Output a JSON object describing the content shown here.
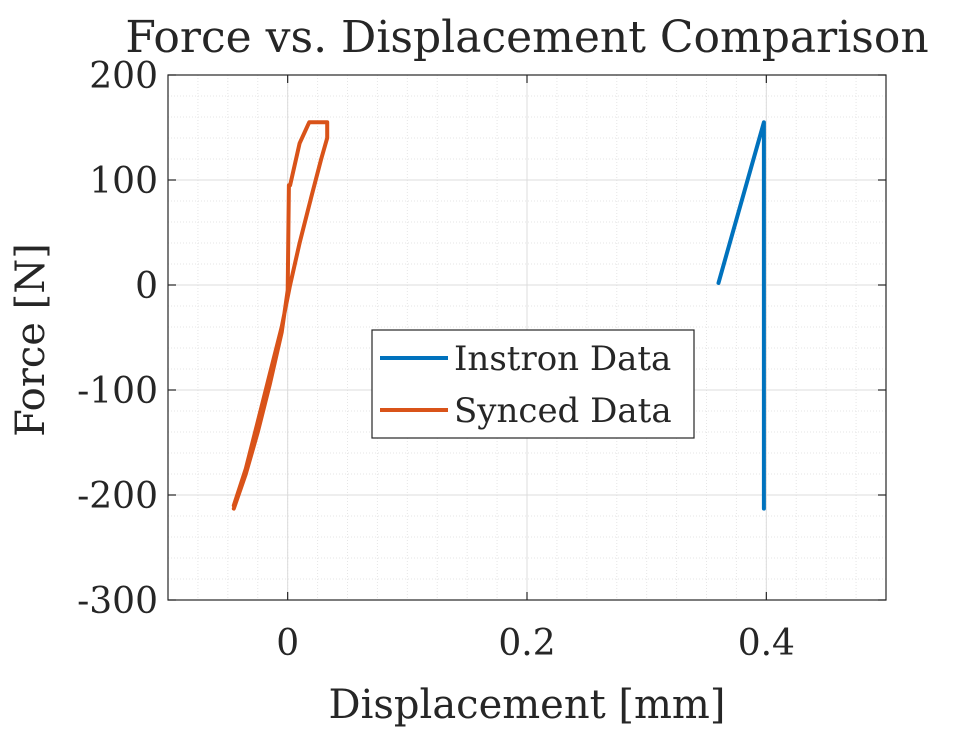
{
  "chart_data": {
    "type": "line",
    "title": "Force vs. Displacement Comparison",
    "xlabel": "Displacement [mm]",
    "ylabel": "Force [N]",
    "xlim": [
      -0.1,
      0.5
    ],
    "ylim": [
      -300,
      200
    ],
    "xticks": [
      0,
      0.2,
      0.4
    ],
    "xtick_labels": [
      "0",
      "0.2",
      "0.4"
    ],
    "yticks": [
      -300,
      -200,
      -100,
      0,
      100,
      200
    ],
    "ytick_labels": [
      "-300",
      "-200",
      "-100",
      "0",
      "100",
      "200"
    ],
    "grid": true,
    "minor_grid": true,
    "legend_position": "center",
    "series": [
      {
        "name": "Instron Data",
        "color": "#0072BD",
        "x": [
          0.36,
          0.398,
          0.398
        ],
        "y": [
          2,
          155,
          -213
        ]
      },
      {
        "name": "Synced Data",
        "color": "#D95319",
        "x": [
          -0.045,
          -0.035,
          -0.025,
          -0.015,
          -0.005,
          0.0,
          0.001,
          0.002,
          0.01,
          0.018,
          0.025,
          0.033,
          0.033,
          0.028,
          0.02,
          0.01,
          0.002,
          -0.005,
          -0.015,
          -0.025,
          -0.035,
          -0.045
        ],
        "y": [
          -213,
          -180,
          -140,
          -95,
          -45,
          -5,
          95,
          95,
          135,
          155,
          155,
          155,
          140,
          120,
          85,
          40,
          0,
          -40,
          -85,
          -130,
          -175,
          -210
        ]
      }
    ]
  }
}
